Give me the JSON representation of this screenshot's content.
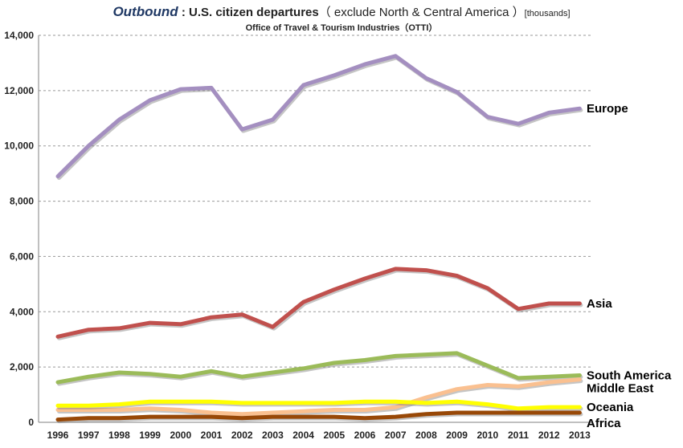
{
  "chart_data": {
    "type": "line",
    "title": {
      "main": "Outbound",
      "colon": " : ",
      "rest": "U.S. citizen departures",
      "paren": "（ exclude North & Central America ）",
      "units": "[thousands]"
    },
    "subtitle": "Office of Travel & Tourism Industries（OTTI）",
    "xlabel": "",
    "ylabel": "",
    "ylim": [
      0,
      14000
    ],
    "yticks": [
      0,
      2000,
      4000,
      6000,
      8000,
      10000,
      12000,
      14000
    ],
    "ytick_labels": [
      "0",
      "2,000",
      "4,000",
      "6,000",
      "8,000",
      "10,000",
      "12,000",
      "14,000"
    ],
    "categories": [
      "1996",
      "1997",
      "1998",
      "1999",
      "2000",
      "2001",
      "2002",
      "2003",
      "2004",
      "2005",
      "2006",
      "2007",
      "2008",
      "2009",
      "2010",
      "2011",
      "2012",
      "2013"
    ],
    "grid": true,
    "series": [
      {
        "name": "Europe",
        "color": "#a48fc0",
        "values": [
          8900,
          10000,
          10950,
          11650,
          12050,
          12100,
          10600,
          10950,
          12200,
          12550,
          12950,
          13250,
          12450,
          11950,
          11050,
          10800,
          11200,
          11350
        ]
      },
      {
        "name": "Asia",
        "color": "#c0504d",
        "values": [
          3100,
          3350,
          3400,
          3600,
          3550,
          3800,
          3900,
          3450,
          4350,
          4800,
          5200,
          5550,
          5500,
          5300,
          4850,
          4100,
          4300,
          4300
        ]
      },
      {
        "name": "South America",
        "color": "#9bbb59",
        "values": [
          1450,
          1650,
          1800,
          1750,
          1650,
          1850,
          1650,
          1800,
          1950,
          2150,
          2250,
          2400,
          2450,
          2500,
          2050,
          1600,
          1650,
          1700
        ]
      },
      {
        "name": "Middle East",
        "color": "#fac090",
        "values": [
          450,
          450,
          450,
          500,
          450,
          350,
          300,
          350,
          400,
          450,
          450,
          550,
          900,
          1200,
          1350,
          1300,
          1450,
          1550
        ]
      },
      {
        "name": "Oceania",
        "color": "#ffff00",
        "values": [
          600,
          600,
          650,
          750,
          750,
          750,
          700,
          700,
          700,
          700,
          750,
          750,
          700,
          750,
          650,
          500,
          550,
          550
        ]
      },
      {
        "name": "Africa",
        "color": "#984807",
        "values": [
          100,
          150,
          150,
          200,
          200,
          200,
          150,
          200,
          200,
          200,
          150,
          200,
          300,
          350,
          350,
          350,
          350,
          350
        ]
      }
    ],
    "series_shadow_color": "#7f7f7f"
  }
}
